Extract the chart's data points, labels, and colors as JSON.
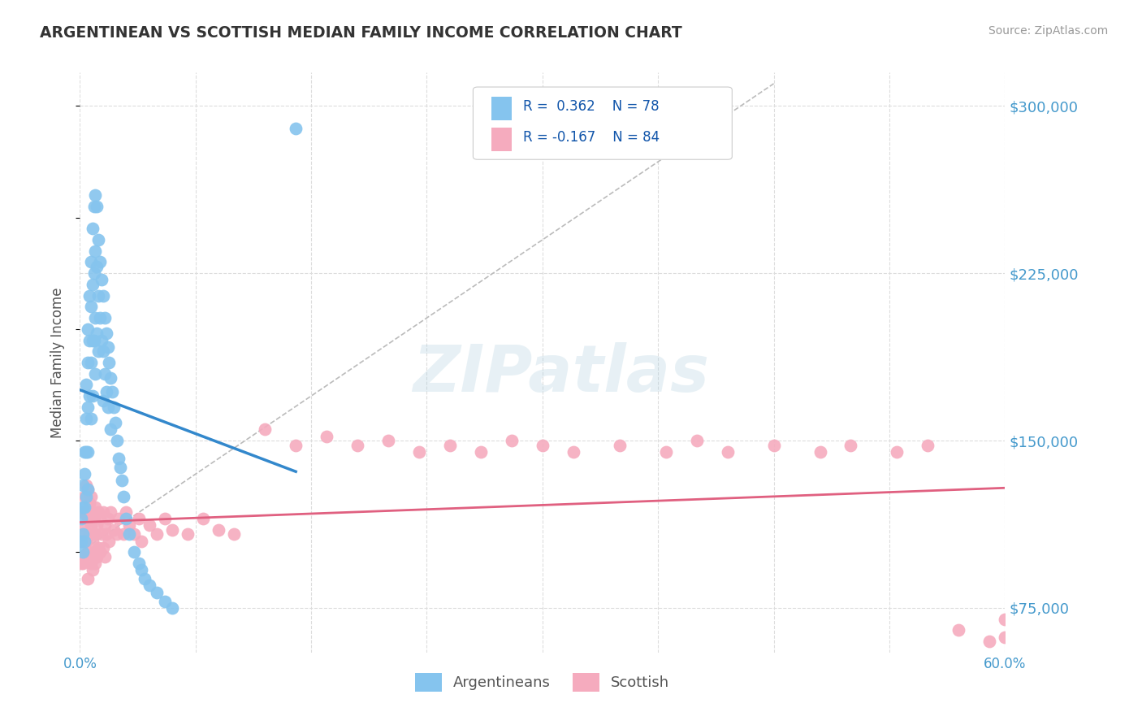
{
  "title": "ARGENTINEAN VS SCOTTISH MEDIAN FAMILY INCOME CORRELATION CHART",
  "source": "Source: ZipAtlas.com",
  "ylabel": "Median Family Income",
  "xlim": [
    0.0,
    0.6
  ],
  "ylim": [
    55000,
    315000
  ],
  "yticks": [
    75000,
    150000,
    225000,
    300000
  ],
  "ytick_labels": [
    "$75,000",
    "$150,000",
    "$225,000",
    "$300,000"
  ],
  "xtick_labels": [
    "0.0%",
    "60.0%"
  ],
  "xtick_positions": [
    0.0,
    0.6
  ],
  "argentinean_color": "#85C4EE",
  "scottish_color": "#F5ABBE",
  "argentinean_line_color": "#3388CC",
  "scottish_line_color": "#E06080",
  "legend_label1": "Argentineans",
  "legend_label2": "Scottish",
  "watermark_text": "ZIPatlas",
  "background_color": "#FFFFFF",
  "title_color": "#333333",
  "axis_label_color": "#555555",
  "tick_color": "#4499CC",
  "grid_color": "#DDDDDD",
  "argentinean_R": 0.362,
  "argentinean_N": 78,
  "scottish_R": -0.167,
  "scottish_N": 84,
  "argentinean_x": [
    0.001,
    0.001,
    0.002,
    0.002,
    0.002,
    0.002,
    0.003,
    0.003,
    0.003,
    0.003,
    0.004,
    0.004,
    0.004,
    0.004,
    0.005,
    0.005,
    0.005,
    0.005,
    0.005,
    0.006,
    0.006,
    0.006,
    0.007,
    0.007,
    0.007,
    0.007,
    0.008,
    0.008,
    0.008,
    0.008,
    0.009,
    0.009,
    0.009,
    0.01,
    0.01,
    0.01,
    0.01,
    0.011,
    0.011,
    0.011,
    0.012,
    0.012,
    0.012,
    0.013,
    0.013,
    0.014,
    0.014,
    0.015,
    0.015,
    0.015,
    0.016,
    0.016,
    0.017,
    0.017,
    0.018,
    0.018,
    0.019,
    0.02,
    0.02,
    0.021,
    0.022,
    0.023,
    0.024,
    0.025,
    0.026,
    0.027,
    0.028,
    0.03,
    0.032,
    0.035,
    0.038,
    0.04,
    0.042,
    0.045,
    0.05,
    0.055,
    0.06,
    0.14
  ],
  "argentinean_y": [
    115000,
    105000,
    130000,
    120000,
    108000,
    100000,
    145000,
    135000,
    120000,
    105000,
    175000,
    160000,
    145000,
    125000,
    200000,
    185000,
    165000,
    145000,
    128000,
    215000,
    195000,
    170000,
    230000,
    210000,
    185000,
    160000,
    245000,
    220000,
    195000,
    170000,
    255000,
    225000,
    195000,
    260000,
    235000,
    205000,
    180000,
    255000,
    228000,
    198000,
    240000,
    215000,
    190000,
    230000,
    205000,
    222000,
    195000,
    215000,
    190000,
    168000,
    205000,
    180000,
    198000,
    172000,
    192000,
    165000,
    185000,
    178000,
    155000,
    172000,
    165000,
    158000,
    150000,
    142000,
    138000,
    132000,
    125000,
    115000,
    108000,
    100000,
    95000,
    92000,
    88000,
    85000,
    82000,
    78000,
    75000,
    290000
  ],
  "scottish_x": [
    0.001,
    0.001,
    0.002,
    0.002,
    0.002,
    0.003,
    0.003,
    0.003,
    0.004,
    0.004,
    0.004,
    0.005,
    0.005,
    0.005,
    0.005,
    0.006,
    0.006,
    0.007,
    0.007,
    0.007,
    0.008,
    0.008,
    0.008,
    0.009,
    0.009,
    0.01,
    0.01,
    0.01,
    0.011,
    0.011,
    0.012,
    0.012,
    0.013,
    0.013,
    0.014,
    0.015,
    0.015,
    0.016,
    0.016,
    0.017,
    0.018,
    0.019,
    0.02,
    0.022,
    0.024,
    0.025,
    0.028,
    0.03,
    0.032,
    0.035,
    0.038,
    0.04,
    0.045,
    0.05,
    0.055,
    0.06,
    0.07,
    0.08,
    0.09,
    0.1,
    0.12,
    0.14,
    0.16,
    0.18,
    0.2,
    0.22,
    0.24,
    0.26,
    0.28,
    0.3,
    0.32,
    0.35,
    0.38,
    0.4,
    0.42,
    0.45,
    0.48,
    0.5,
    0.53,
    0.55,
    0.57,
    0.59,
    0.6,
    0.6
  ],
  "scottish_y": [
    105000,
    95000,
    118000,
    108000,
    95000,
    125000,
    112000,
    98000,
    130000,
    118000,
    105000,
    128000,
    115000,
    100000,
    88000,
    122000,
    108000,
    125000,
    112000,
    95000,
    118000,
    105000,
    92000,
    115000,
    100000,
    120000,
    108000,
    95000,
    112000,
    98000,
    118000,
    102000,
    115000,
    100000,
    108000,
    118000,
    102000,
    112000,
    98000,
    108000,
    115000,
    105000,
    118000,
    110000,
    108000,
    115000,
    108000,
    118000,
    112000,
    108000,
    115000,
    105000,
    112000,
    108000,
    115000,
    110000,
    108000,
    115000,
    110000,
    108000,
    155000,
    148000,
    152000,
    148000,
    150000,
    145000,
    148000,
    145000,
    150000,
    148000,
    145000,
    148000,
    145000,
    150000,
    145000,
    148000,
    145000,
    148000,
    145000,
    148000,
    65000,
    60000,
    70000,
    62000
  ]
}
